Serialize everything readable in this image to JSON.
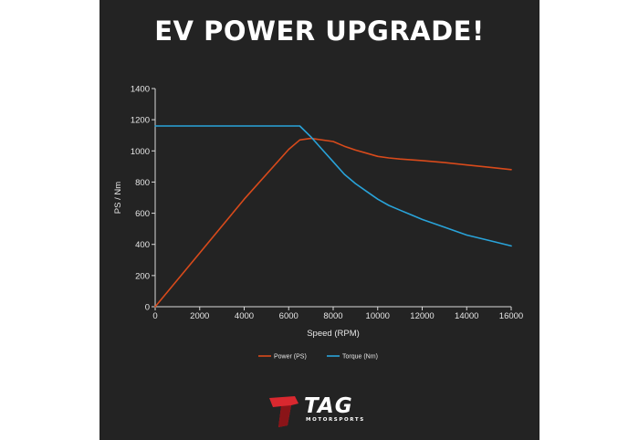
{
  "title": "EV POWER UPGRADE!",
  "colors": {
    "background": "#232323",
    "power": "#d84a1b",
    "torque": "#29a3d9",
    "text": "#e6e6e6",
    "logo_red": "#d9282f"
  },
  "chart_data": {
    "type": "line",
    "xlabel": "Speed (RPM)",
    "ylabel": "PS / Nm",
    "xlim": [
      0,
      16000
    ],
    "ylim": [
      0,
      1400
    ],
    "xticks": [
      0,
      2000,
      4000,
      6000,
      8000,
      10000,
      12000,
      14000,
      16000
    ],
    "yticks": [
      0,
      200,
      400,
      600,
      800,
      1000,
      1200,
      1400
    ],
    "grid": false,
    "legend_position": "bottom-center",
    "series": [
      {
        "name": "Power (PS)",
        "color": "#d84a1b",
        "x": [
          0,
          2000,
          4000,
          6000,
          6500,
          7000,
          8000,
          8500,
          9000,
          9500,
          10000,
          10500,
          11000,
          12000,
          13000,
          14000,
          15000,
          16000
        ],
        "y": [
          0,
          345,
          690,
          1010,
          1070,
          1080,
          1060,
          1030,
          1005,
          985,
          965,
          955,
          948,
          938,
          925,
          910,
          895,
          880
        ]
      },
      {
        "name": "Torque (Nm)",
        "color": "#29a3d9",
        "x": [
          0,
          6500,
          7000,
          7500,
          8000,
          8500,
          9000,
          9500,
          10000,
          10500,
          11000,
          11500,
          12000,
          13000,
          14000,
          15000,
          16000
        ],
        "y": [
          1160,
          1160,
          1090,
          1010,
          930,
          850,
          790,
          740,
          690,
          650,
          620,
          590,
          560,
          510,
          460,
          425,
          390
        ]
      }
    ]
  },
  "logo": {
    "word": "TAG",
    "sub": "MOTORSPORTS"
  }
}
